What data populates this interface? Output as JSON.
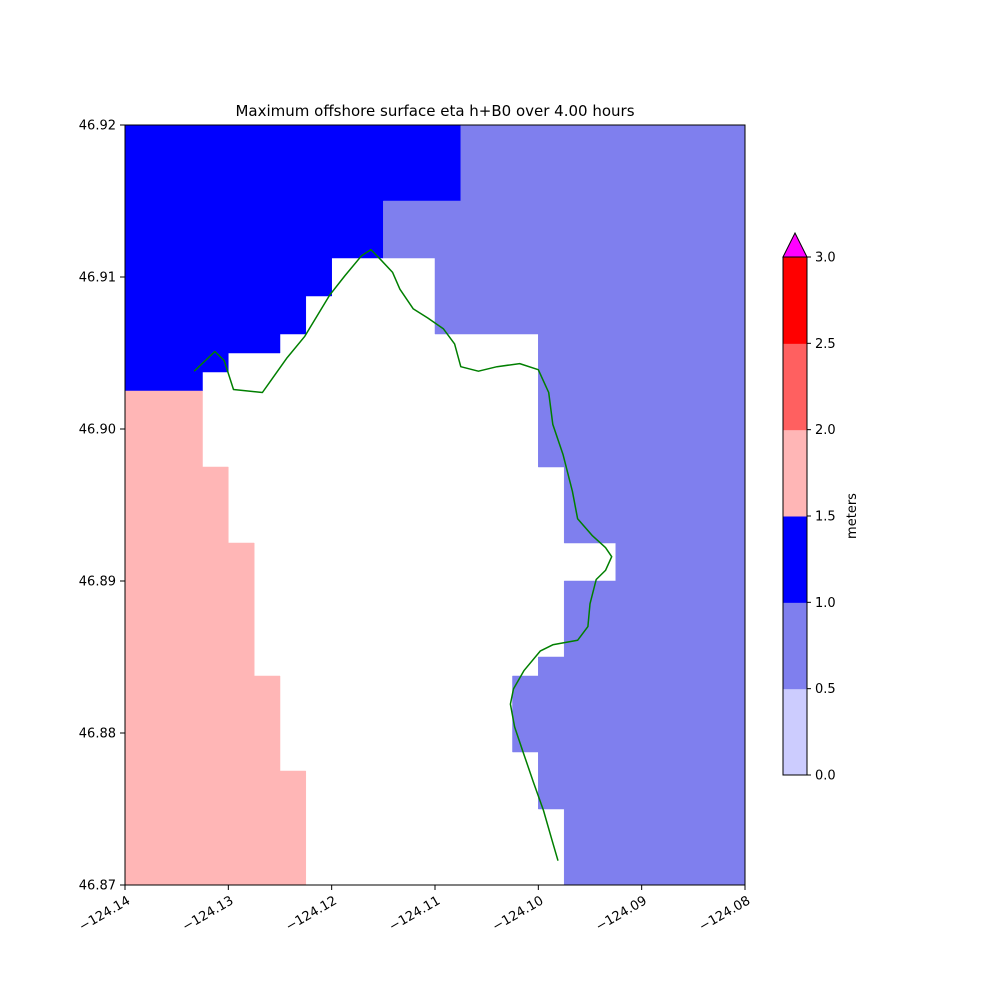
{
  "figure": {
    "background": "#ffffff"
  },
  "chart_data": {
    "type": "heatmap",
    "title": "Maximum offshore surface eta h+B0 over 4.00 hours",
    "xlabel": "",
    "ylabel": "",
    "xlim": [
      -124.14,
      -124.08
    ],
    "ylim": [
      46.87,
      46.92
    ],
    "grid": false,
    "land_color": "#ffffff",
    "x_ticks": {
      "values": [
        -124.14,
        -124.13,
        -124.12,
        -124.11,
        -124.1,
        -124.09,
        -124.08
      ],
      "labels": [
        "−124.14",
        "−124.13",
        "−124.12",
        "−124.11",
        "−124.10",
        "−124.09",
        "−124.08"
      ]
    },
    "y_ticks": {
      "values": [
        46.87,
        46.88,
        46.89,
        46.9,
        46.91,
        46.92
      ],
      "labels": [
        "46.87",
        "46.88",
        "46.89",
        "46.90",
        "46.91",
        "46.92"
      ]
    },
    "colorbar": {
      "label": "meters",
      "range": [
        0,
        3
      ],
      "tick_values": [
        0,
        0.5,
        1,
        1.5,
        2,
        2.5,
        3
      ],
      "tick_labels": [
        "0.0",
        "0.5",
        "1.0",
        "1.5",
        "2.0",
        "2.5",
        "3.0"
      ],
      "segment_colors": [
        "#ccccfe",
        "#7f7fee",
        "#0000ff",
        "#ffb6b6",
        "#ff6060",
        "#ff0000"
      ],
      "over_color": "#ff00ff"
    },
    "regions": [
      {
        "name": "eta-1.0-1.5m",
        "value_range": [
          1.0,
          1.5
        ],
        "color": "#0000ff",
        "polygon": [
          [
            -124.14,
            46.92
          ],
          [
            -124.1075,
            46.92
          ],
          [
            -124.1075,
            46.915
          ],
          [
            -124.115,
            46.915
          ],
          [
            -124.115,
            46.91125
          ],
          [
            -124.12,
            46.91125
          ],
          [
            -124.12,
            46.90875
          ],
          [
            -124.1225,
            46.90875
          ],
          [
            -124.1225,
            46.90625
          ],
          [
            -124.125,
            46.90625
          ],
          [
            -124.125,
            46.905
          ],
          [
            -124.13,
            46.905
          ],
          [
            -124.13,
            46.90375
          ],
          [
            -124.1325,
            46.90375
          ],
          [
            -124.1325,
            46.9025
          ],
          [
            -124.14,
            46.9025
          ]
        ]
      },
      {
        "name": "eta-0.5-1.0m",
        "value_range": [
          0.5,
          1.0
        ],
        "color": "#7f7fee",
        "polygon": [
          [
            -124.1075,
            46.92
          ],
          [
            -124.08,
            46.92
          ],
          [
            -124.08,
            46.87
          ],
          [
            -124.0975,
            46.87
          ],
          [
            -124.0975,
            46.875
          ],
          [
            -124.1,
            46.875
          ],
          [
            -124.1,
            46.87875
          ],
          [
            -124.1025,
            46.87875
          ],
          [
            -124.1025,
            46.88375
          ],
          [
            -124.1,
            46.88375
          ],
          [
            -124.1,
            46.885
          ],
          [
            -124.0975,
            46.885
          ],
          [
            -124.0975,
            46.89
          ],
          [
            -124.0925,
            46.89
          ],
          [
            -124.0925,
            46.8925
          ],
          [
            -124.0975,
            46.8925
          ],
          [
            -124.0975,
            46.8975
          ],
          [
            -124.1,
            46.8975
          ],
          [
            -124.1,
            46.90625
          ],
          [
            -124.11,
            46.90625
          ],
          [
            -124.11,
            46.91125
          ],
          [
            -124.115,
            46.91125
          ],
          [
            -124.115,
            46.915
          ],
          [
            -124.1075,
            46.915
          ]
        ]
      },
      {
        "name": "eta-1.5-2.0m",
        "value_range": [
          1.5,
          2.0
        ],
        "color": "#ffb6b6",
        "polygon": [
          [
            -124.14,
            46.9025
          ],
          [
            -124.1325,
            46.9025
          ],
          [
            -124.1325,
            46.8975
          ],
          [
            -124.13,
            46.8975
          ],
          [
            -124.13,
            46.8925
          ],
          [
            -124.1275,
            46.8925
          ],
          [
            -124.1275,
            46.88375
          ],
          [
            -124.125,
            46.88375
          ],
          [
            -124.125,
            46.8775
          ],
          [
            -124.1225,
            46.8775
          ],
          [
            -124.1225,
            46.87
          ],
          [
            -124.14,
            46.87
          ]
        ]
      }
    ],
    "coastline": {
      "color": "#007f00",
      "points": [
        [
          -124.1333,
          46.9038
        ],
        [
          -124.1313,
          46.9051
        ],
        [
          -124.1304,
          46.9045
        ],
        [
          -124.1295,
          46.9026
        ],
        [
          -124.1267,
          46.9024
        ],
        [
          -124.1243,
          46.9047
        ],
        [
          -124.1226,
          46.9061
        ],
        [
          -124.1202,
          46.9088
        ],
        [
          -124.1187,
          46.9101
        ],
        [
          -124.1171,
          46.9114
        ],
        [
          -124.1162,
          46.9118
        ],
        [
          -124.1152,
          46.9111
        ],
        [
          -124.1141,
          46.9103
        ],
        [
          -124.1134,
          46.9092
        ],
        [
          -124.1121,
          46.9079
        ],
        [
          -124.1107,
          46.9073
        ],
        [
          -124.1092,
          46.9066
        ],
        [
          -124.1081,
          46.9056
        ],
        [
          -124.1075,
          46.9041
        ],
        [
          -124.1058,
          46.9038
        ],
        [
          -124.104,
          46.9041
        ],
        [
          -124.1018,
          46.9043
        ],
        [
          -124.1,
          46.9039
        ],
        [
          -124.099,
          46.9024
        ],
        [
          -124.0986,
          46.9003
        ],
        [
          -124.0976,
          46.8983
        ],
        [
          -124.0967,
          46.8959
        ],
        [
          -124.0962,
          46.8941
        ],
        [
          -124.0948,
          46.893
        ],
        [
          -124.0935,
          46.8922
        ],
        [
          -124.0929,
          46.8916
        ],
        [
          -124.0935,
          46.8907
        ],
        [
          -124.0944,
          46.8901
        ],
        [
          -124.095,
          46.8885
        ],
        [
          -124.0952,
          46.887
        ],
        [
          -124.0962,
          46.8861
        ],
        [
          -124.0986,
          46.8858
        ],
        [
          -124.0998,
          46.8854
        ],
        [
          -124.1014,
          46.8841
        ],
        [
          -124.1024,
          46.8829
        ],
        [
          -124.1027,
          46.8819
        ],
        [
          -124.1023,
          46.8804
        ],
        [
          -124.1015,
          46.8788
        ],
        [
          -124.1005,
          46.8768
        ],
        [
          -124.0995,
          46.8749
        ],
        [
          -124.0987,
          46.873
        ],
        [
          -124.0981,
          46.8716
        ]
      ]
    }
  }
}
